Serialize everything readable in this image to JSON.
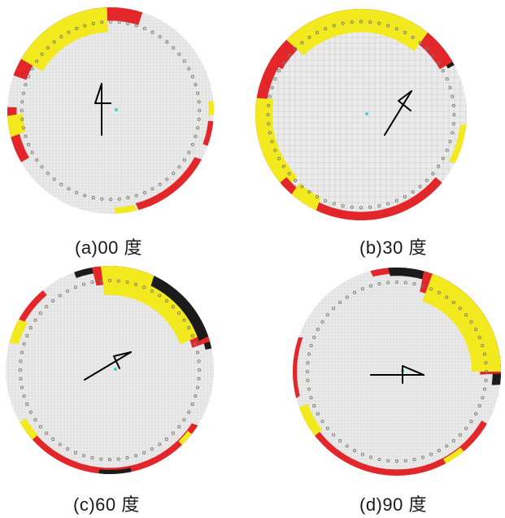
{
  "figure": {
    "panels": [
      {
        "id": "a",
        "caption": "(a)00 度",
        "wind_direction_deg": 0
      },
      {
        "id": "b",
        "caption": "(b)30 度",
        "wind_direction_deg": 30
      },
      {
        "id": "c",
        "caption": "(c)60 度",
        "wind_direction_deg": 60
      },
      {
        "id": "d",
        "caption": "(d)90 度",
        "wind_direction_deg": 90
      }
    ],
    "colors": {
      "black": "#1b1b1b",
      "red": "#e3262a",
      "yellow": "#f2ea1e",
      "grid_fill": "#ececec",
      "grid_line": "#d2d2d2",
      "column_dot": "#7a7a6e",
      "arrow": "#000000",
      "center": "#3fd6d2"
    }
  }
}
